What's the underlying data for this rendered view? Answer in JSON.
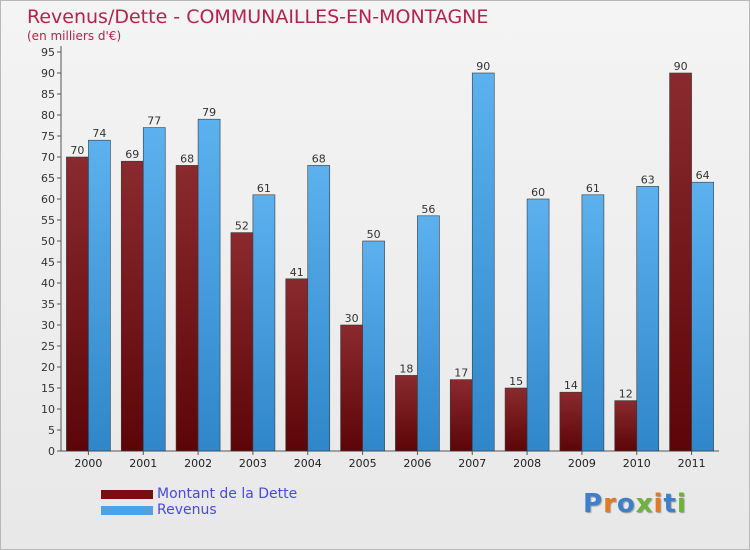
{
  "title": "Revenus/Dette - COMMUNAILLES-EN-MONTAGNE",
  "subtitle": "(en milliers d'€)",
  "logo": "Proxiti",
  "colors": {
    "dette": "#7a0c12",
    "revenus": "#4aa3e6",
    "title": "#b5234c",
    "legend_text": "#4848e8"
  },
  "chart_data": {
    "type": "bar",
    "title": "Revenus/Dette - COMMUNAILLES-EN-MONTAGNE",
    "ylabel": "(en milliers d'€)",
    "categories": [
      "2000",
      "2001",
      "2002",
      "2003",
      "2004",
      "2005",
      "2006",
      "2007",
      "2008",
      "2009",
      "2010",
      "2011"
    ],
    "series": [
      {
        "name": "Montant de la Dette",
        "values": [
          70,
          69,
          68,
          52,
          41,
          30,
          18,
          17,
          15,
          14,
          12,
          90
        ]
      },
      {
        "name": "Revenus",
        "values": [
          74,
          77,
          79,
          61,
          68,
          50,
          56,
          90,
          60,
          61,
          63,
          64
        ]
      }
    ],
    "ylim": [
      0,
      95
    ],
    "ytick_step": 5,
    "grid": false,
    "legend_position": "bottom-left"
  }
}
